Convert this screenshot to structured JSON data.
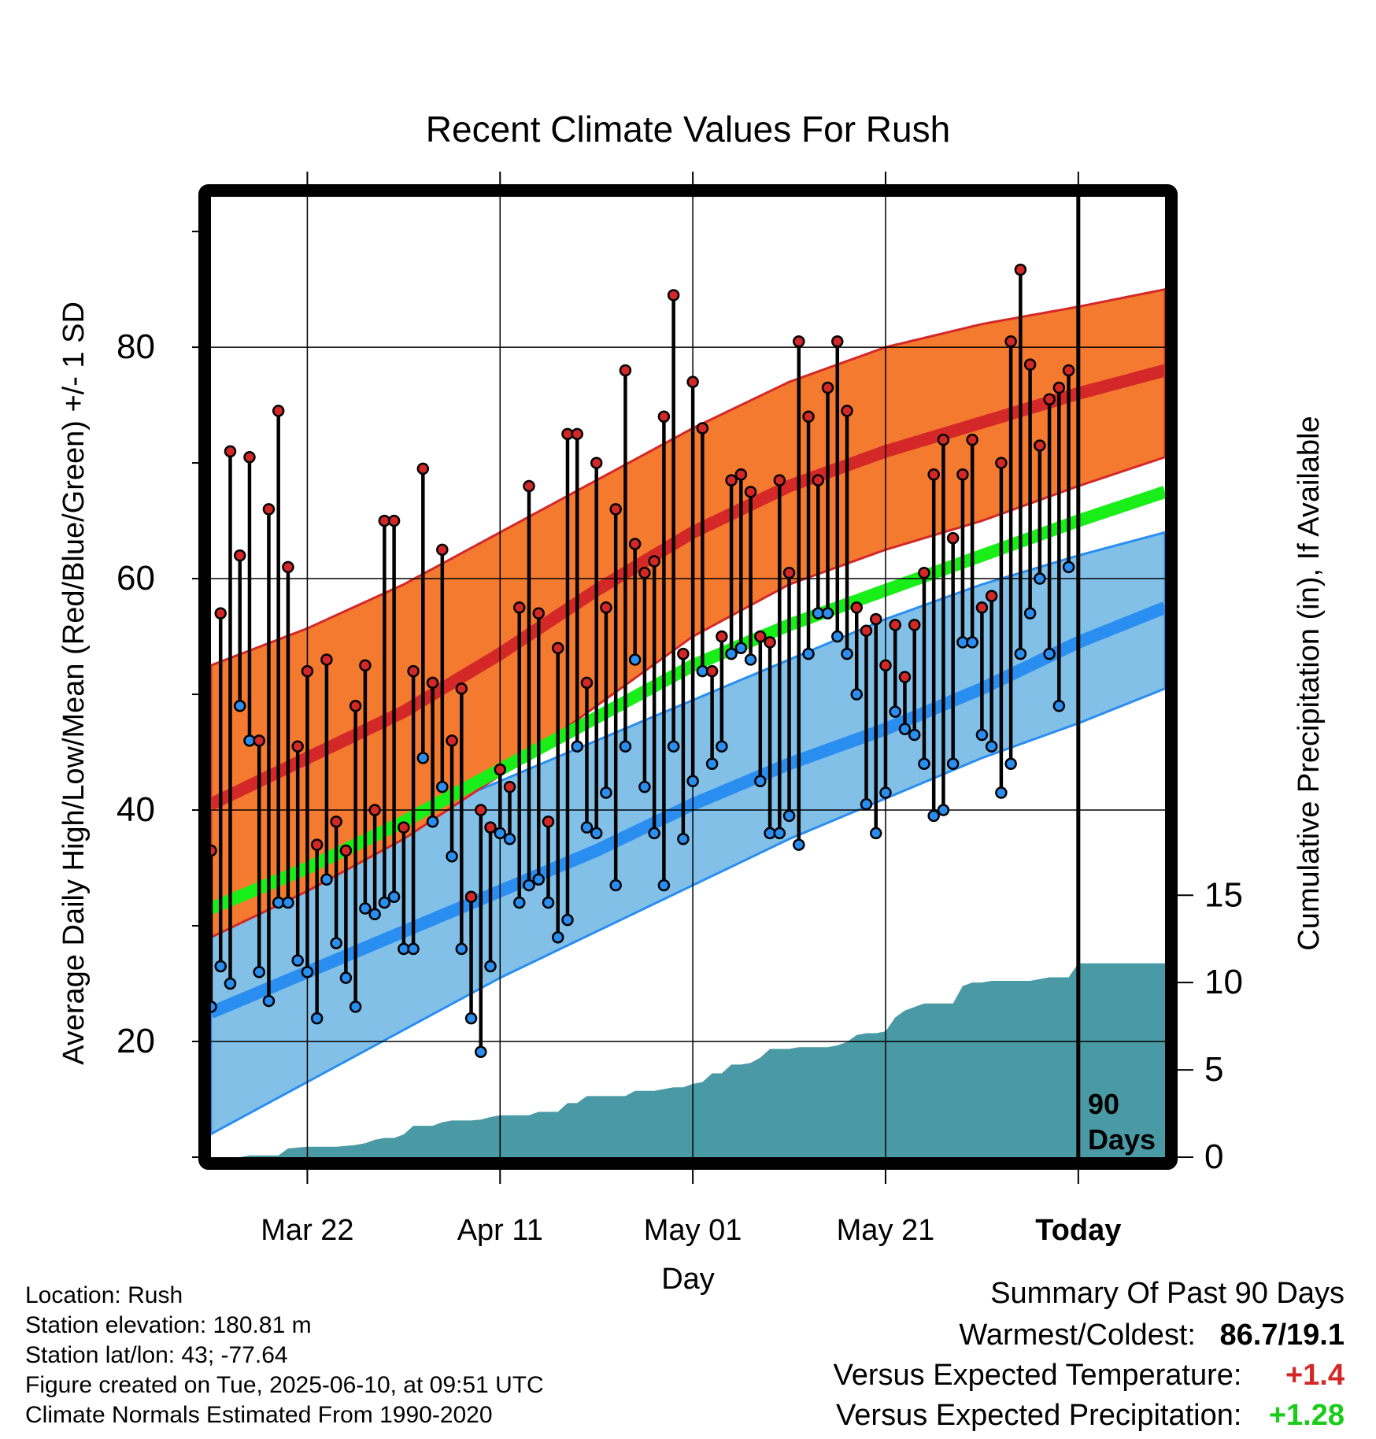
{
  "title": "Recent Climate Values For Rush",
  "y_left_label": "Average Daily High/Low/Mean (Red/Blue/Green) +/- 1 SD",
  "y_right_label": "Cumulative Precipitation (in), If Available",
  "x_label": "Day",
  "today_marker": {
    "line1": "90",
    "line2": "Days"
  },
  "info": {
    "location": "Location: Rush",
    "elevation": "Station elevation: 180.81 m",
    "latlon": "Station lat/lon: 43; -77.64",
    "created": "Figure created on Tue, 2025-06-10, at 09:51 UTC",
    "normals": "Climate Normals Estimated From 1990-2020"
  },
  "summary": {
    "heading": "Summary Of Past 90 Days",
    "warmest_label": "Warmest/Coldest:",
    "warmest_value": "86.7/19.1",
    "temp_label": "Versus Expected Temperature:",
    "temp_value": "+1.4",
    "precip_label": "Versus Expected Precipitation:",
    "precip_value": "+1.28"
  },
  "colors": {
    "high_band": "#f47a30",
    "high_mean": "#d42828",
    "low_band": "#82c0e8",
    "low_mean": "#2a8ef0",
    "mean_line": "#19ee19",
    "precip": "#4a9aa5",
    "high_dot": "#d42828",
    "low_dot": "#2a8ef0",
    "temp_value": "#d42828",
    "precip_value": "#19cc19"
  },
  "chart_data": {
    "type": "line",
    "x_range_days": [
      -90,
      9
    ],
    "x_ticks": [
      {
        "day": -80,
        "label": "Mar 22"
      },
      {
        "day": -60,
        "label": "Apr 11"
      },
      {
        "day": -40,
        "label": "May 01"
      },
      {
        "day": -20,
        "label": "May 21"
      },
      {
        "day": 0,
        "label": "Today"
      }
    ],
    "y_left_range": [
      10,
      93
    ],
    "y_left_ticks": [
      20,
      40,
      60,
      80
    ],
    "y_right_range": [
      0,
      55
    ],
    "y_right_ticks": [
      0,
      5,
      10,
      15
    ],
    "normals": {
      "day": [
        -90,
        -80,
        -70,
        -60,
        -50,
        -40,
        -30,
        -20,
        -10,
        0,
        9
      ],
      "high_mean": [
        40.5,
        44.5,
        48.5,
        53.5,
        59,
        64,
        68,
        71,
        73.5,
        76,
        78
      ],
      "high_upper": [
        52.5,
        55.7,
        59.5,
        64,
        68.5,
        73,
        77,
        80,
        82,
        83.5,
        85
      ],
      "high_lower": [
        29,
        33,
        37.5,
        43,
        49,
        55,
        59.5,
        62.5,
        65,
        68,
        70.5
      ],
      "low_mean": [
        22.5,
        26,
        29.5,
        33,
        36.5,
        40.5,
        44,
        47,
        50.5,
        54.5,
        57.5
      ],
      "low_upper": [
        33,
        35.5,
        39,
        42.5,
        46,
        49.5,
        53,
        56.5,
        59.5,
        62,
        64
      ],
      "low_lower": [
        12,
        16.5,
        21,
        25.5,
        29.5,
        33.5,
        37.5,
        41,
        44.5,
        47.5,
        50.5
      ],
      "mean": [
        31.5,
        35,
        39,
        43.5,
        48,
        52.5,
        56,
        59,
        62,
        65,
        67.5
      ]
    },
    "daily": {
      "start_day": -90,
      "high": [
        36.5,
        57,
        71,
        62,
        70.5,
        46,
        66,
        74.5,
        61,
        45.5,
        52,
        37,
        53,
        39,
        36.5,
        49,
        52.5,
        40,
        65,
        65,
        38.5,
        52,
        69.5,
        51,
        62.5,
        46,
        50.5,
        32.5,
        40,
        38.5,
        43.5,
        42,
        57.5,
        68,
        57,
        39,
        54,
        72.5,
        72.5,
        51,
        70,
        57.5,
        66,
        78,
        63,
        60.5,
        61.5,
        74,
        84.5,
        53.5,
        77,
        73,
        52,
        55,
        68.5,
        69,
        67.5,
        55,
        54.5,
        68.5,
        60.5,
        80.5,
        74,
        68.5,
        76.5,
        80.5,
        74.5,
        57.5,
        55.5,
        56.5,
        52.5,
        56,
        51.5,
        56,
        60.5,
        69,
        72,
        63.5,
        69,
        72,
        57.5,
        58.5,
        70,
        80.5,
        86.7,
        78.5,
        71.5,
        75.5,
        76.5,
        78
      ],
      "low": [
        23,
        26.5,
        25,
        49,
        46,
        26,
        23.5,
        32,
        32,
        27,
        26,
        22,
        34,
        28.5,
        25.5,
        23,
        31.5,
        31,
        32,
        32.5,
        28,
        28,
        44.5,
        39,
        42,
        36,
        28,
        22,
        19.1,
        26.5,
        38,
        37.5,
        32,
        33.5,
        34,
        32,
        29,
        30.5,
        45.5,
        38.5,
        38,
        41.5,
        33.5,
        45.5,
        53,
        42,
        38,
        33.5,
        45.5,
        37.5,
        42.5,
        52,
        44,
        45.5,
        53.5,
        54,
        53,
        42.5,
        38,
        38,
        39.5,
        37,
        53.5,
        57,
        57,
        55,
        53.5,
        50,
        40.5,
        38,
        41.5,
        48.5,
        47,
        46.5,
        44,
        39.5,
        40,
        44,
        54.5,
        54.5,
        46.5,
        45.5,
        41.5,
        44,
        53.5,
        57,
        60,
        53.5,
        49,
        61
      ]
    },
    "precip": {
      "day": [
        -90,
        -87,
        -86,
        -85,
        -84,
        -83,
        -82,
        -81,
        -80,
        -79,
        -78,
        -77,
        -76,
        -75,
        -74,
        -73,
        -72,
        -71,
        -70,
        -69,
        -68,
        -67,
        -66,
        -65,
        -64,
        -63,
        -62,
        -61,
        -60,
        -59,
        -58,
        -57,
        -56,
        -55,
        -54,
        -53,
        -52,
        -51,
        -50,
        -49,
        -48,
        -47,
        -46,
        -45,
        -44,
        -43,
        -42,
        -41,
        -40,
        -39,
        -38,
        -37,
        -36,
        -35,
        -34,
        -33,
        -32,
        -31,
        -30,
        -29,
        -28,
        -27,
        -26,
        -25,
        -24,
        -23,
        -22,
        -21,
        -20,
        -19,
        -18,
        -17,
        -16,
        -15,
        -14,
        -13,
        -12,
        -11,
        -10,
        -9,
        -8,
        -7,
        -6,
        -5,
        -4,
        -3,
        -2,
        -1,
        0,
        9
      ],
      "value": [
        0,
        0,
        0.1,
        0.1,
        0.1,
        0.1,
        0.5,
        0.55,
        0.6,
        0.6,
        0.6,
        0.6,
        0.65,
        0.7,
        0.8,
        1,
        1.1,
        1.1,
        1.3,
        1.8,
        1.8,
        1.8,
        2,
        2.1,
        2.1,
        2.1,
        2.15,
        2.3,
        2.4,
        2.4,
        2.4,
        2.4,
        2.6,
        2.6,
        2.6,
        3.1,
        3.1,
        3.5,
        3.5,
        3.5,
        3.5,
        3.5,
        3.8,
        3.8,
        3.8,
        3.9,
        4,
        4,
        4.2,
        4.3,
        4.8,
        4.8,
        5.3,
        5.3,
        5.4,
        5.7,
        6.2,
        6.2,
        6.2,
        6.3,
        6.3,
        6.3,
        6.3,
        6.4,
        6.6,
        7,
        7.1,
        7.1,
        7.2,
        8,
        8.4,
        8.6,
        8.8,
        8.8,
        8.8,
        8.8,
        9.8,
        10,
        10,
        10.1,
        10.1,
        10.1,
        10.1,
        10.1,
        10.2,
        10.3,
        10.3,
        10.3,
        11.1,
        11.1
      ]
    }
  }
}
